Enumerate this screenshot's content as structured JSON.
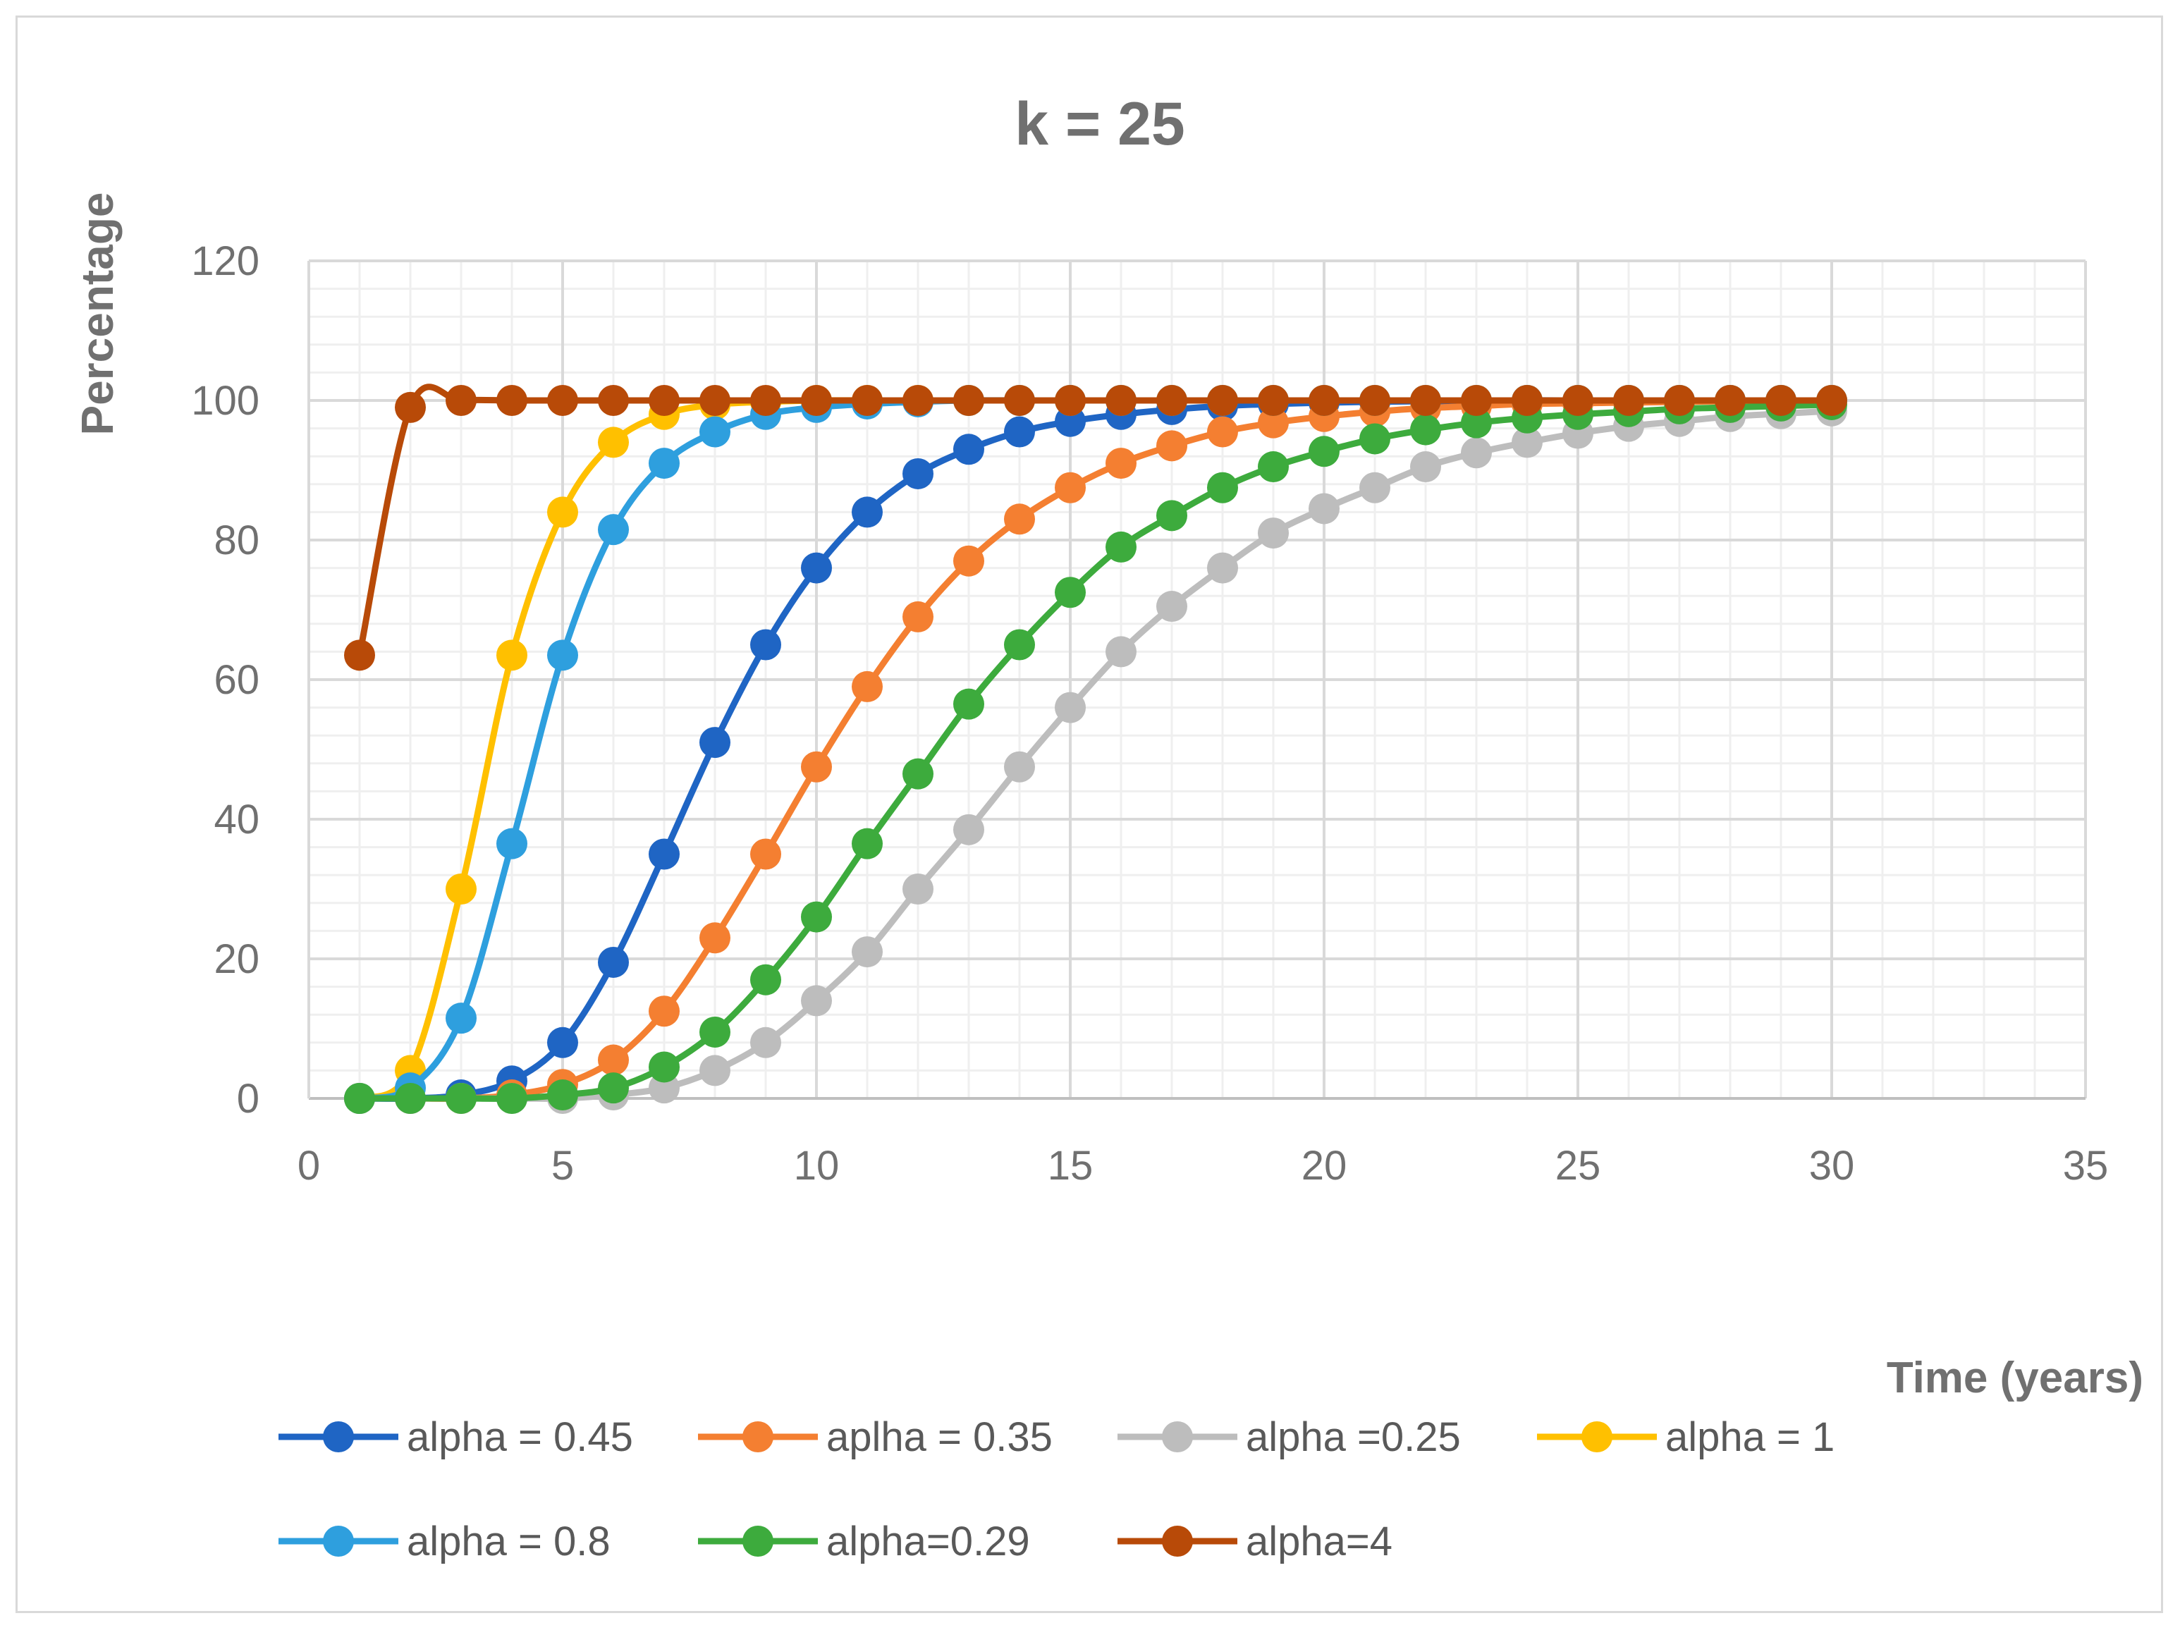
{
  "chart_data": {
    "type": "line",
    "title": "k = 25",
    "xlabel": "Time (years)",
    "ylabel": "Percentage",
    "xlim": [
      0,
      35
    ],
    "ylim": [
      0,
      120
    ],
    "xticks": [
      0,
      5,
      10,
      15,
      20,
      25,
      30,
      35
    ],
    "yticks": [
      0,
      20,
      40,
      60,
      80,
      100,
      120
    ],
    "grid": true,
    "minor_grid": true,
    "legend_position": "bottom",
    "x": [
      1,
      2,
      3,
      4,
      5,
      6,
      7,
      8,
      9,
      10,
      11,
      12,
      13,
      14,
      15,
      16,
      17,
      18,
      19,
      20,
      21,
      22,
      23,
      24,
      25,
      26,
      27,
      28,
      29,
      30
    ],
    "series": [
      {
        "name": "alpha = 0.45",
        "color": "#1f65c4",
        "values": [
          0,
          0,
          0.5,
          2.5,
          8,
          19.5,
          35,
          51,
          65,
          76,
          84,
          89.5,
          93,
          95.5,
          97,
          98,
          98.7,
          99.2,
          99.5,
          99.7,
          99.8,
          99.9,
          99.9,
          100,
          100,
          100,
          100,
          100,
          100,
          100
        ]
      },
      {
        "name": "aplha = 0.35",
        "color": "#f47f31",
        "values": [
          0,
          0,
          0,
          0.5,
          2,
          5.5,
          12.5,
          23,
          35,
          47.5,
          59,
          69,
          77,
          83,
          87.5,
          91,
          93.5,
          95.5,
          96.8,
          97.7,
          98.4,
          98.9,
          99.2,
          99.5,
          99.6,
          99.7,
          99.8,
          99.9,
          99.9,
          100
        ]
      },
      {
        "name": "alpha =0.25",
        "color": "#bdbdbd",
        "values": [
          0,
          0,
          0,
          0,
          0,
          0.5,
          1.5,
          4,
          8,
          14,
          21,
          30,
          38.5,
          47.5,
          56,
          64,
          70.5,
          76,
          81,
          84.5,
          87.5,
          90.5,
          92.5,
          94,
          95.3,
          96.3,
          97,
          97.7,
          98.1,
          98.5
        ]
      },
      {
        "name": "alpha = 1",
        "color": "#ffc000",
        "values": [
          0,
          4,
          30,
          63.5,
          84,
          94,
          98,
          99.4,
          99.8,
          100,
          100,
          100,
          100,
          100,
          100,
          100,
          100,
          100,
          100,
          100,
          100,
          100,
          100,
          100,
          100,
          100,
          100,
          100,
          100,
          100
        ]
      },
      {
        "name": "alpha = 0.8",
        "color": "#2e9fde",
        "values": [
          0,
          1.5,
          11.5,
          36.5,
          63.5,
          81.5,
          91,
          95.5,
          98,
          99,
          99.5,
          99.8,
          100,
          100,
          100,
          100,
          100,
          100,
          100,
          100,
          100,
          100,
          100,
          100,
          100,
          100,
          100,
          100,
          100,
          100
        ]
      },
      {
        "name": "alpha=0.29",
        "color": "#3dab3d",
        "values": [
          0,
          0,
          0,
          0,
          0.5,
          1.5,
          4.5,
          9.5,
          17,
          26,
          36.5,
          46.5,
          56.5,
          65,
          72.5,
          79,
          83.5,
          87.5,
          90.5,
          92.7,
          94.5,
          95.8,
          96.8,
          97.5,
          98,
          98.4,
          98.8,
          99,
          99.2,
          99.4
        ]
      },
      {
        "name": "alpha=4",
        "color": "#b84a08",
        "values": [
          63.5,
          99,
          100,
          100,
          100,
          100,
          100,
          100,
          100,
          100,
          100,
          100,
          100,
          100,
          100,
          100,
          100,
          100,
          100,
          100,
          100,
          100,
          100,
          100,
          100,
          100,
          100,
          100,
          100,
          100
        ]
      }
    ]
  }
}
